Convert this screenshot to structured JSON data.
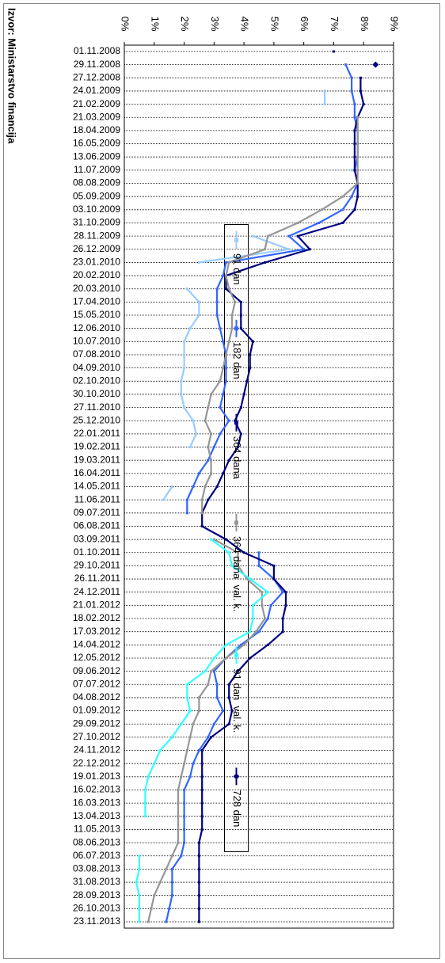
{
  "chart_data": {
    "type": "line",
    "source": "Izvor: Ministarstvo financija",
    "categories": [
      "01.11.2008",
      "29.11.2008",
      "27.12.2008",
      "24.01.2009",
      "21.02.2009",
      "21.03.2009",
      "18.04.2009",
      "16.05.2009",
      "13.06.2009",
      "11.07.2009",
      "08.08.2009",
      "05.09.2009",
      "03.10.2009",
      "31.10.2009",
      "28.11.2009",
      "26.12.2009",
      "23.01.2010",
      "20.02.2010",
      "20.03.2010",
      "17.04.2010",
      "15.05.2010",
      "12.06.2010",
      "10.07.2010",
      "07.08.2010",
      "04.09.2010",
      "02.10.2010",
      "30.10.2010",
      "27.11.2010",
      "25.12.2010",
      "22.01.2011",
      "19.02.2011",
      "19.03.2011",
      "16.04.2011",
      "14.05.2011",
      "11.06.2011",
      "09.07.2011",
      "06.08.2011",
      "03.09.2011",
      "01.10.2011",
      "29.10.2011",
      "26.11.2011",
      "24.12.2011",
      "21.01.2012",
      "18.02.2012",
      "17.03.2012",
      "14.04.2012",
      "12.05.2012",
      "09.06.2012",
      "07.07.2012",
      "04.08.2012",
      "01.09.2012",
      "29.09.2012",
      "27.10.2012",
      "24.11.2012",
      "22.12.2012",
      "19.01.2013",
      "16.02.2013",
      "16.03.2013",
      "13.04.2013",
      "11.05.2013",
      "08.06.2013",
      "06.07.2013",
      "03.08.2013",
      "31.08.2013",
      "28.09.2013",
      "26.10.2013",
      "23.11.2013"
    ],
    "ylim": [
      0,
      9
    ],
    "yticks": [
      {
        "value": 0,
        "label": "0%"
      },
      {
        "value": 1,
        "label": "1%"
      },
      {
        "value": 2,
        "label": "2%"
      },
      {
        "value": 3,
        "label": "3%"
      },
      {
        "value": 4,
        "label": "4%"
      },
      {
        "value": 5,
        "label": "5%"
      },
      {
        "value": 6,
        "label": "6%"
      },
      {
        "value": 7,
        "label": "7%"
      },
      {
        "value": 8,
        "label": "8%"
      },
      {
        "value": 9,
        "label": "9%"
      }
    ],
    "series": [
      {
        "name": "91 dan",
        "color": "#99ccff",
        "marker": "square",
        "values": [
          null,
          null,
          null,
          6.7,
          6.7,
          null,
          null,
          null,
          null,
          7.6,
          null,
          null,
          null,
          null,
          4.3,
          5.5,
          2.5,
          null,
          2.1,
          2.5,
          2.5,
          2.2,
          2.0,
          2.0,
          2.0,
          1.9,
          1.9,
          2.0,
          2.3,
          2.4,
          2.2,
          null,
          null,
          1.6,
          1.3,
          null,
          null,
          null,
          null,
          null,
          null,
          null,
          null,
          null,
          null,
          null,
          null,
          null,
          null,
          null,
          null,
          null,
          null,
          null,
          null,
          null,
          null,
          null,
          null,
          null,
          null,
          null,
          null,
          null,
          null,
          null,
          null
        ]
      },
      {
        "name": "182 dan",
        "color": "#3366ff",
        "marker": "square",
        "values": [
          null,
          7.4,
          7.6,
          7.6,
          7.7,
          7.7,
          7.8,
          7.8,
          7.8,
          7.7,
          7.8,
          7.6,
          7.3,
          6.5,
          5.5,
          6.0,
          3.4,
          3.3,
          3.1,
          3.1,
          3.1,
          3.2,
          3.3,
          3.4,
          3.4,
          3.4,
          3.3,
          3.2,
          3.5,
          3.2,
          3.0,
          2.8,
          2.5,
          2.3,
          2.1,
          2.1,
          null,
          null,
          4.5,
          4.5,
          5.0,
          5.3,
          4.9,
          4.8,
          4.5,
          3.9,
          3.4,
          3.0,
          3.1,
          3.1,
          3.3,
          3.0,
          2.8,
          2.5,
          2.3,
          2.2,
          2.0,
          2.0,
          2.0,
          2.0,
          2.0,
          1.9,
          1.6,
          1.6,
          1.6,
          1.5,
          1.4
        ]
      },
      {
        "name": "364 dana",
        "color": "#000080",
        "marker": "square",
        "values": [
          7.0,
          null,
          7.9,
          7.9,
          8.0,
          7.8,
          7.7,
          7.7,
          7.7,
          7.7,
          7.8,
          7.8,
          7.7,
          7.3,
          5.8,
          6.2,
          4.7,
          3.4,
          3.4,
          3.9,
          3.9,
          3.9,
          4.3,
          4.2,
          4.2,
          4.1,
          4.0,
          3.9,
          3.7,
          3.9,
          3.8,
          3.5,
          3.3,
          3.1,
          2.8,
          2.6,
          2.6,
          3.4,
          4.0,
          5.0,
          5.0,
          5.4,
          5.4,
          5.3,
          5.3,
          4.8,
          4.2,
          3.8,
          3.5,
          3.5,
          3.6,
          3.5,
          2.9,
          2.6,
          2.6,
          2.6,
          2.6,
          2.6,
          2.6,
          2.6,
          2.5,
          2.5,
          2.5,
          2.5,
          2.5,
          2.5,
          2.5
        ]
      },
      {
        "name": "364 dana  val. k.",
        "color": "#969696",
        "marker": "square",
        "values": [
          null,
          null,
          null,
          null,
          null,
          7.8,
          7.8,
          7.8,
          7.8,
          7.8,
          7.8,
          7.3,
          6.6,
          5.8,
          4.8,
          4.7,
          3.5,
          3.4,
          3.5,
          3.7,
          3.6,
          3.6,
          3.5,
          3.4,
          3.3,
          3.2,
          2.9,
          2.8,
          2.7,
          2.9,
          2.8,
          2.9,
          2.9,
          2.7,
          2.6,
          2.6,
          null,
          3.0,
          3.8,
          3.8,
          4.1,
          4.6,
          4.6,
          4.7,
          4.4,
          4.0,
          3.4,
          2.9,
          2.8,
          2.5,
          2.5,
          2.3,
          2.2,
          2.1,
          2.0,
          1.9,
          1.8,
          1.8,
          1.8,
          1.8,
          1.8,
          1.6,
          1.4,
          1.2,
          1.0,
          0.9,
          0.8
        ]
      },
      {
        "name": "91 dan  val. k.",
        "color": "#33ffff",
        "marker": "square",
        "values": [
          null,
          null,
          null,
          null,
          null,
          null,
          null,
          null,
          null,
          null,
          null,
          null,
          null,
          null,
          null,
          null,
          null,
          null,
          null,
          null,
          null,
          null,
          null,
          null,
          null,
          null,
          null,
          null,
          null,
          null,
          null,
          null,
          null,
          null,
          null,
          null,
          null,
          2.9,
          3.5,
          3.6,
          4.2,
          4.8,
          4.3,
          4.3,
          4.2,
          3.4,
          3.0,
          2.7,
          2.1,
          2.1,
          2.2,
          1.9,
          1.6,
          1.2,
          1.0,
          0.8,
          0.7,
          0.7,
          0.7,
          null,
          null,
          0.5,
          0.5,
          0.4,
          0.5,
          0.5,
          0.5
        ]
      },
      {
        "name": "728 dan",
        "color": "#000080",
        "marker": "diamond",
        "values": [
          null,
          8.4,
          null,
          null,
          null,
          null,
          null,
          null,
          null,
          null,
          null,
          null,
          null,
          null,
          null,
          null,
          null,
          null,
          null,
          null,
          null,
          null,
          null,
          null,
          null,
          null,
          null,
          null,
          null,
          null,
          null,
          null,
          null,
          null,
          null,
          null,
          null,
          null,
          null,
          null,
          null,
          null,
          null,
          null,
          null,
          null,
          null,
          null,
          null,
          null,
          null,
          null,
          null,
          null,
          null,
          null,
          null,
          null,
          null,
          null,
          null,
          null,
          null,
          null,
          null,
          null,
          null
        ]
      }
    ]
  }
}
